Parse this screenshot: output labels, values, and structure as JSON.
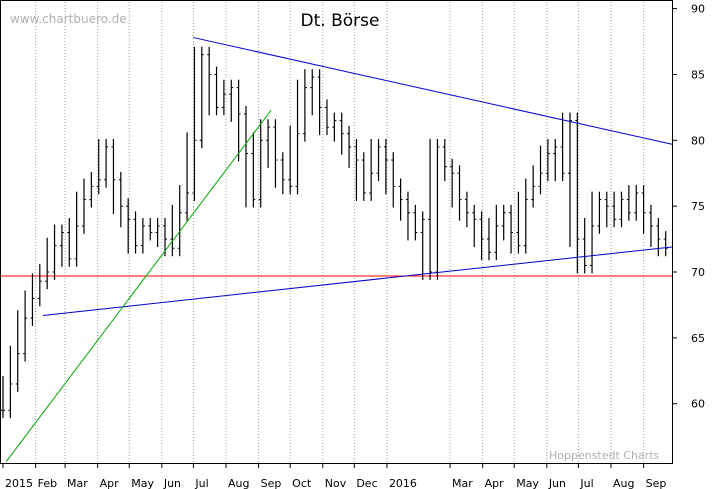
{
  "chart_data": {
    "type": "line",
    "title": "Dt. Börse",
    "watermark_top": "www.chartbuero.de",
    "watermark_bottom": "Hoppenstedt Charts",
    "y_ticks": [
      60,
      65,
      70,
      75,
      80,
      85,
      90
    ],
    "ylim": [
      55.5,
      90.5
    ],
    "x_labels": [
      {
        "label": "2015",
        "date": "2015-01-01"
      },
      {
        "label": "Feb",
        "date": "2015-02-01"
      },
      {
        "label": "Mar",
        "date": "2015-03-01"
      },
      {
        "label": "Apr",
        "date": "2015-04-01"
      },
      {
        "label": "May",
        "date": "2015-05-01"
      },
      {
        "label": "Jun",
        "date": "2015-06-01"
      },
      {
        "label": "Jul",
        "date": "2015-07-01"
      },
      {
        "label": "Aug",
        "date": "2015-08-01"
      },
      {
        "label": "Sep",
        "date": "2015-09-01"
      },
      {
        "label": "Oct",
        "date": "2015-10-01"
      },
      {
        "label": "Nov",
        "date": "2015-11-01"
      },
      {
        "label": "Dec",
        "date": "2015-12-01"
      },
      {
        "label": "2016",
        "date": "2016-01-01"
      },
      {
        "label": "Mar",
        "date": "2016-03-01"
      },
      {
        "label": "Apr",
        "date": "2016-04-01"
      },
      {
        "label": "May",
        "date": "2016-05-01"
      },
      {
        "label": "Jun",
        "date": "2016-06-01"
      },
      {
        "label": "Jul",
        "date": "2016-07-01"
      },
      {
        "label": "Aug",
        "date": "2016-08-01"
      },
      {
        "label": "Sep",
        "date": "2016-09-01"
      }
    ],
    "xlim": [
      "2015-01-01",
      "2016-09-28"
    ],
    "grid": "vertical dotted",
    "series": [
      {
        "style": "ohlc bars",
        "color": "#000000",
        "points": [
          {
            "x": "2015-01-01",
            "y": 59.5
          },
          {
            "x": "2015-01-08",
            "y": 61.5
          },
          {
            "x": "2015-01-15",
            "y": 63.8
          },
          {
            "x": "2015-01-22",
            "y": 66.5
          },
          {
            "x": "2015-01-29",
            "y": 68.0
          },
          {
            "x": "2015-02-05",
            "y": 69.3
          },
          {
            "x": "2015-02-12",
            "y": 70.0
          },
          {
            "x": "2015-02-19",
            "y": 72.0
          },
          {
            "x": "2015-02-26",
            "y": 73.0
          },
          {
            "x": "2015-03-05",
            "y": 71.0
          },
          {
            "x": "2015-03-12",
            "y": 73.5
          },
          {
            "x": "2015-03-19",
            "y": 75.5
          },
          {
            "x": "2015-03-26",
            "y": 76.5
          },
          {
            "x": "2015-04-02",
            "y": 77.0
          },
          {
            "x": "2015-04-09",
            "y": 79.5
          },
          {
            "x": "2015-04-16",
            "y": 77.0
          },
          {
            "x": "2015-04-23",
            "y": 75.0
          },
          {
            "x": "2015-04-30",
            "y": 74.0
          },
          {
            "x": "2015-05-07",
            "y": 72.0
          },
          {
            "x": "2015-05-14",
            "y": 73.5
          },
          {
            "x": "2015-05-21",
            "y": 73.0
          },
          {
            "x": "2015-05-28",
            "y": 73.5
          },
          {
            "x": "2015-06-04",
            "y": 72.5
          },
          {
            "x": "2015-06-11",
            "y": 71.8
          },
          {
            "x": "2015-06-18",
            "y": 74.5
          },
          {
            "x": "2015-06-25",
            "y": 76.0
          },
          {
            "x": "2015-07-02",
            "y": 80.0
          },
          {
            "x": "2015-07-09",
            "y": 86.5
          },
          {
            "x": "2015-07-16",
            "y": 85.0
          },
          {
            "x": "2015-07-23",
            "y": 82.5
          },
          {
            "x": "2015-07-30",
            "y": 83.5
          },
          {
            "x": "2015-08-06",
            "y": 84.0
          },
          {
            "x": "2015-08-13",
            "y": 82.0
          },
          {
            "x": "2015-08-20",
            "y": 79.0
          },
          {
            "x": "2015-08-27",
            "y": 75.5
          },
          {
            "x": "2015-09-03",
            "y": 80.0
          },
          {
            "x": "2015-09-10",
            "y": 81.0
          },
          {
            "x": "2015-09-17",
            "y": 78.5
          },
          {
            "x": "2015-09-24",
            "y": 77.0
          },
          {
            "x": "2015-10-01",
            "y": 76.5
          },
          {
            "x": "2015-10-08",
            "y": 80.5
          },
          {
            "x": "2015-10-15",
            "y": 84.0
          },
          {
            "x": "2015-10-22",
            "y": 84.8
          },
          {
            "x": "2015-10-29",
            "y": 82.5
          },
          {
            "x": "2015-11-05",
            "y": 81.0
          },
          {
            "x": "2015-11-12",
            "y": 81.5
          },
          {
            "x": "2015-11-19",
            "y": 80.5
          },
          {
            "x": "2015-11-26",
            "y": 79.5
          },
          {
            "x": "2015-12-03",
            "y": 78.5
          },
          {
            "x": "2015-12-10",
            "y": 76.0
          },
          {
            "x": "2015-12-17",
            "y": 77.5
          },
          {
            "x": "2015-12-24",
            "y": 79.5
          },
          {
            "x": "2015-12-31",
            "y": 78.5
          },
          {
            "x": "2016-01-07",
            "y": 76.5
          },
          {
            "x": "2016-01-14",
            "y": 75.5
          },
          {
            "x": "2016-01-21",
            "y": 74.5
          },
          {
            "x": "2016-01-28",
            "y": 73.0
          },
          {
            "x": "2016-02-04",
            "y": 74.0
          },
          {
            "x": "2016-02-11",
            "y": 70.0
          },
          {
            "x": "2016-02-18",
            "y": 79.5
          },
          {
            "x": "2016-02-25",
            "y": 78.0
          },
          {
            "x": "2016-03-03",
            "y": 77.5
          },
          {
            "x": "2016-03-10",
            "y": 75.5
          },
          {
            "x": "2016-03-17",
            "y": 74.5
          },
          {
            "x": "2016-03-24",
            "y": 74.0
          },
          {
            "x": "2016-03-31",
            "y": 72.5
          },
          {
            "x": "2016-04-07",
            "y": 71.5
          },
          {
            "x": "2016-04-14",
            "y": 73.5
          },
          {
            "x": "2016-04-21",
            "y": 74.5
          },
          {
            "x": "2016-04-28",
            "y": 73.0
          },
          {
            "x": "2016-05-05",
            "y": 72.0
          },
          {
            "x": "2016-05-12",
            "y": 75.5
          },
          {
            "x": "2016-05-19",
            "y": 76.5
          },
          {
            "x": "2016-05-26",
            "y": 77.5
          },
          {
            "x": "2016-06-02",
            "y": 79.0
          },
          {
            "x": "2016-06-09",
            "y": 79.5
          },
          {
            "x": "2016-06-16",
            "y": 77.5
          },
          {
            "x": "2016-06-23",
            "y": 81.5
          },
          {
            "x": "2016-06-30",
            "y": 72.5
          },
          {
            "x": "2016-07-07",
            "y": 70.5
          },
          {
            "x": "2016-07-14",
            "y": 73.5
          },
          {
            "x": "2016-07-21",
            "y": 75.5
          },
          {
            "x": "2016-07-28",
            "y": 75.0
          },
          {
            "x": "2016-08-04",
            "y": 74.0
          },
          {
            "x": "2016-08-11",
            "y": 75.5
          },
          {
            "x": "2016-08-18",
            "y": 74.5
          },
          {
            "x": "2016-08-25",
            "y": 76.0
          },
          {
            "x": "2016-09-01",
            "y": 74.5
          },
          {
            "x": "2016-09-08",
            "y": 73.5
          },
          {
            "x": "2016-09-15",
            "y": 72.5
          },
          {
            "x": "2016-09-22",
            "y": 71.8
          }
        ]
      }
    ],
    "trendlines": [
      {
        "color": "#0000cc",
        "from": {
          "x": "2015-02-08",
          "y": 66.7
        },
        "to": {
          "x": "2016-09-28",
          "y": 71.9
        }
      },
      {
        "color": "#0000cc",
        "from": {
          "x": "2015-07-01",
          "y": 87.8
        },
        "to": {
          "x": "2016-09-28",
          "y": 79.7
        }
      },
      {
        "color": "#00aa00",
        "from": {
          "x": "2015-01-04",
          "y": 55.6
        },
        "to": {
          "x": "2015-09-13",
          "y": 82.3
        }
      }
    ],
    "hlines": [
      {
        "color": "#ff0000",
        "y": 69.7
      }
    ]
  }
}
